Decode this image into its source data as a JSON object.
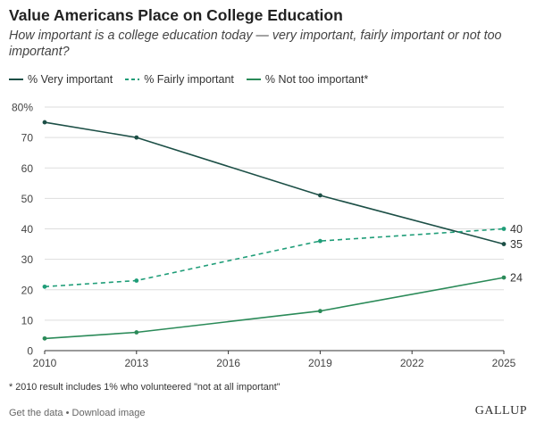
{
  "title": "Value Americans Place on College Education",
  "subtitle": "How important is a college education today — very important, fairly important or not too important?",
  "legend": {
    "very": "% Very important",
    "fairly": "% Fairly important",
    "not_too": "% Not too important*"
  },
  "footnote": "* 2010 result includes 1% who volunteered \"not at all important\"",
  "links": {
    "get_data": "Get the data",
    "separator": "•",
    "download": "Download image"
  },
  "brand": "GALLUP",
  "colors": {
    "very": "#1c4f46",
    "fairly": "#1f9d78",
    "not_too": "#2a8a58",
    "grid": "#dddddd",
    "axis": "#333333"
  },
  "chart_data": {
    "type": "line",
    "x": [
      2010,
      2013,
      2019,
      2025
    ],
    "xticks": [
      "2010",
      "2013",
      "2016",
      "2019",
      "2022",
      "2025"
    ],
    "xlim": [
      2010,
      2025
    ],
    "ylim": [
      0,
      80
    ],
    "yticks": [
      "0",
      "10",
      "20",
      "30",
      "40",
      "50",
      "60",
      "70",
      "80%"
    ],
    "grid": true,
    "legend_position": "top-left",
    "series": [
      {
        "name": "% Very important",
        "key": "very",
        "style": "solid",
        "values": [
          75,
          70,
          51,
          35
        ],
        "end_label": "35"
      },
      {
        "name": "% Fairly important",
        "key": "fairly",
        "style": "dashed",
        "values": [
          21,
          23,
          36,
          40
        ],
        "end_label": "40"
      },
      {
        "name": "% Not too important*",
        "key": "not_too",
        "style": "solid",
        "values": [
          4,
          6,
          13,
          24
        ],
        "end_label": "24"
      }
    ]
  }
}
